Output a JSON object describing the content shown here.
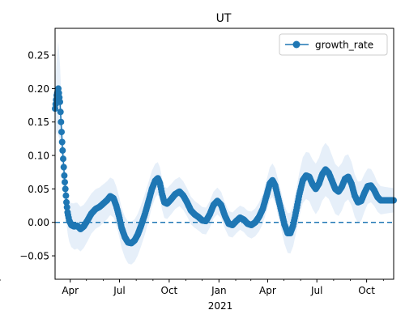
{
  "chart_data": {
    "type": "line",
    "title": "UT",
    "xlabel": "",
    "ylabel": "",
    "x_ticks": [
      {
        "date": "2020-04-01",
        "label": "Apr"
      },
      {
        "date": "2020-07-01",
        "label": "Jul"
      },
      {
        "date": "2020-10-01",
        "label": "Oct"
      },
      {
        "date": "2021-01-01",
        "label": "Jan"
      },
      {
        "date": "2021-04-01",
        "label": "Apr"
      },
      {
        "date": "2021-07-01",
        "label": "Jul"
      },
      {
        "date": "2021-10-01",
        "label": "Oct"
      }
    ],
    "year_label": "2021",
    "xlim": [
      "2020-03-04",
      "2021-11-20"
    ],
    "ylim": [
      -0.085,
      0.29
    ],
    "y_ticks": [
      -0.05,
      0.0,
      0.05,
      0.1,
      0.15,
      0.2,
      0.25
    ],
    "y_tick_labels": [
      "−0.05",
      "0.00",
      "0.05",
      "0.10",
      "0.15",
      "0.20",
      "0.25"
    ],
    "grid": false,
    "legend_position": "top-right",
    "reference_line": {
      "y": 0.0,
      "style": "dashed"
    },
    "colors": {
      "series": "#1f77b4",
      "band": "#e6eff9"
    },
    "series": [
      {
        "name": "growth_rate",
        "points": [
          [
            "2020-03-04",
            0.17
          ],
          [
            "2020-03-07",
            0.19
          ],
          [
            "2020-03-10",
            0.2
          ],
          [
            "2020-03-13",
            0.18
          ],
          [
            "2020-03-15",
            0.15
          ],
          [
            "2020-03-17",
            0.12
          ],
          [
            "2020-03-19",
            0.095
          ],
          [
            "2020-03-21",
            0.07
          ],
          [
            "2020-03-23",
            0.05
          ],
          [
            "2020-03-25",
            0.03
          ],
          [
            "2020-03-27",
            0.015
          ],
          [
            "2020-03-30",
            0.003
          ],
          [
            "2020-04-03",
            -0.004
          ],
          [
            "2020-04-08",
            -0.006
          ],
          [
            "2020-04-14",
            -0.005
          ],
          [
            "2020-04-20",
            -0.01
          ],
          [
            "2020-04-26",
            -0.006
          ],
          [
            "2020-05-03",
            0.003
          ],
          [
            "2020-05-10",
            0.013
          ],
          [
            "2020-05-18",
            0.02
          ],
          [
            "2020-05-25",
            0.023
          ],
          [
            "2020-06-01",
            0.028
          ],
          [
            "2020-06-08",
            0.033
          ],
          [
            "2020-06-14",
            0.039
          ],
          [
            "2020-06-20",
            0.036
          ],
          [
            "2020-06-25",
            0.025
          ],
          [
            "2020-06-30",
            0.01
          ],
          [
            "2020-07-05",
            -0.008
          ],
          [
            "2020-07-11",
            -0.022
          ],
          [
            "2020-07-17",
            -0.03
          ],
          [
            "2020-07-23",
            -0.031
          ],
          [
            "2020-07-29",
            -0.027
          ],
          [
            "2020-08-04",
            -0.018
          ],
          [
            "2020-08-10",
            -0.005
          ],
          [
            "2020-08-17",
            0.012
          ],
          [
            "2020-08-24",
            0.032
          ],
          [
            "2020-08-30",
            0.05
          ],
          [
            "2020-09-05",
            0.062
          ],
          [
            "2020-09-10",
            0.066
          ],
          [
            "2020-09-14",
            0.058
          ],
          [
            "2020-09-18",
            0.042
          ],
          [
            "2020-09-22",
            0.03
          ],
          [
            "2020-09-27",
            0.028
          ],
          [
            "2020-10-04",
            0.034
          ],
          [
            "2020-10-12",
            0.042
          ],
          [
            "2020-10-20",
            0.046
          ],
          [
            "2020-10-27",
            0.04
          ],
          [
            "2020-11-03",
            0.03
          ],
          [
            "2020-11-10",
            0.018
          ],
          [
            "2020-11-17",
            0.012
          ],
          [
            "2020-11-24",
            0.008
          ],
          [
            "2020-12-01",
            0.003
          ],
          [
            "2020-12-08",
            0.002
          ],
          [
            "2020-12-15",
            0.012
          ],
          [
            "2020-12-22",
            0.026
          ],
          [
            "2020-12-29",
            0.032
          ],
          [
            "2021-01-05",
            0.026
          ],
          [
            "2021-01-12",
            0.01
          ],
          [
            "2021-01-19",
            -0.002
          ],
          [
            "2021-01-26",
            -0.004
          ],
          [
            "2021-02-02",
            0.002
          ],
          [
            "2021-02-09",
            0.007
          ],
          [
            "2021-02-16",
            0.004
          ],
          [
            "2021-02-23",
            -0.002
          ],
          [
            "2021-03-02",
            -0.004
          ],
          [
            "2021-03-09",
            0.0
          ],
          [
            "2021-03-16",
            0.008
          ],
          [
            "2021-03-23",
            0.02
          ],
          [
            "2021-03-30",
            0.04
          ],
          [
            "2021-04-05",
            0.058
          ],
          [
            "2021-04-10",
            0.063
          ],
          [
            "2021-04-15",
            0.055
          ],
          [
            "2021-04-20",
            0.038
          ],
          [
            "2021-04-26",
            0.018
          ],
          [
            "2021-05-02",
            -0.003
          ],
          [
            "2021-05-08",
            -0.016
          ],
          [
            "2021-05-13",
            -0.016
          ],
          [
            "2021-05-18",
            -0.005
          ],
          [
            "2021-05-24",
            0.018
          ],
          [
            "2021-05-30",
            0.043
          ],
          [
            "2021-06-05",
            0.063
          ],
          [
            "2021-06-11",
            0.07
          ],
          [
            "2021-06-17",
            0.068
          ],
          [
            "2021-06-23",
            0.057
          ],
          [
            "2021-06-29",
            0.05
          ],
          [
            "2021-07-05",
            0.058
          ],
          [
            "2021-07-11",
            0.072
          ],
          [
            "2021-07-17",
            0.079
          ],
          [
            "2021-07-23",
            0.074
          ],
          [
            "2021-07-29",
            0.062
          ],
          [
            "2021-08-04",
            0.05
          ],
          [
            "2021-08-10",
            0.046
          ],
          [
            "2021-08-16",
            0.053
          ],
          [
            "2021-08-22",
            0.065
          ],
          [
            "2021-08-28",
            0.068
          ],
          [
            "2021-09-03",
            0.058
          ],
          [
            "2021-09-09",
            0.04
          ],
          [
            "2021-09-15",
            0.03
          ],
          [
            "2021-09-21",
            0.032
          ],
          [
            "2021-09-27",
            0.044
          ],
          [
            "2021-10-03",
            0.054
          ],
          [
            "2021-10-09",
            0.055
          ],
          [
            "2021-10-15",
            0.048
          ],
          [
            "2021-10-21",
            0.038
          ],
          [
            "2021-10-27",
            0.033
          ],
          [
            "2021-11-05",
            0.033
          ],
          [
            "2021-11-15",
            0.033
          ],
          [
            "2021-11-20",
            0.033
          ]
        ],
        "band_half_width": [
          [
            "2020-03-04",
            0.04
          ],
          [
            "2020-03-10",
            0.07
          ],
          [
            "2020-03-17",
            0.04
          ],
          [
            "2020-03-25",
            0.03
          ],
          [
            "2020-04-10",
            0.035
          ],
          [
            "2020-05-10",
            0.03
          ],
          [
            "2020-06-15",
            0.028
          ],
          [
            "2020-07-23",
            0.032
          ],
          [
            "2020-08-20",
            0.03
          ],
          [
            "2020-09-10",
            0.024
          ],
          [
            "2020-10-15",
            0.022
          ],
          [
            "2020-11-20",
            0.02
          ],
          [
            "2020-12-29",
            0.02
          ],
          [
            "2021-02-10",
            0.018
          ],
          [
            "2021-03-20",
            0.022
          ],
          [
            "2021-04-10",
            0.025
          ],
          [
            "2021-05-10",
            0.03
          ],
          [
            "2021-06-10",
            0.035
          ],
          [
            "2021-07-15",
            0.04
          ],
          [
            "2021-08-20",
            0.035
          ],
          [
            "2021-09-20",
            0.03
          ],
          [
            "2021-10-20",
            0.022
          ],
          [
            "2021-11-20",
            0.018
          ]
        ]
      }
    ]
  }
}
